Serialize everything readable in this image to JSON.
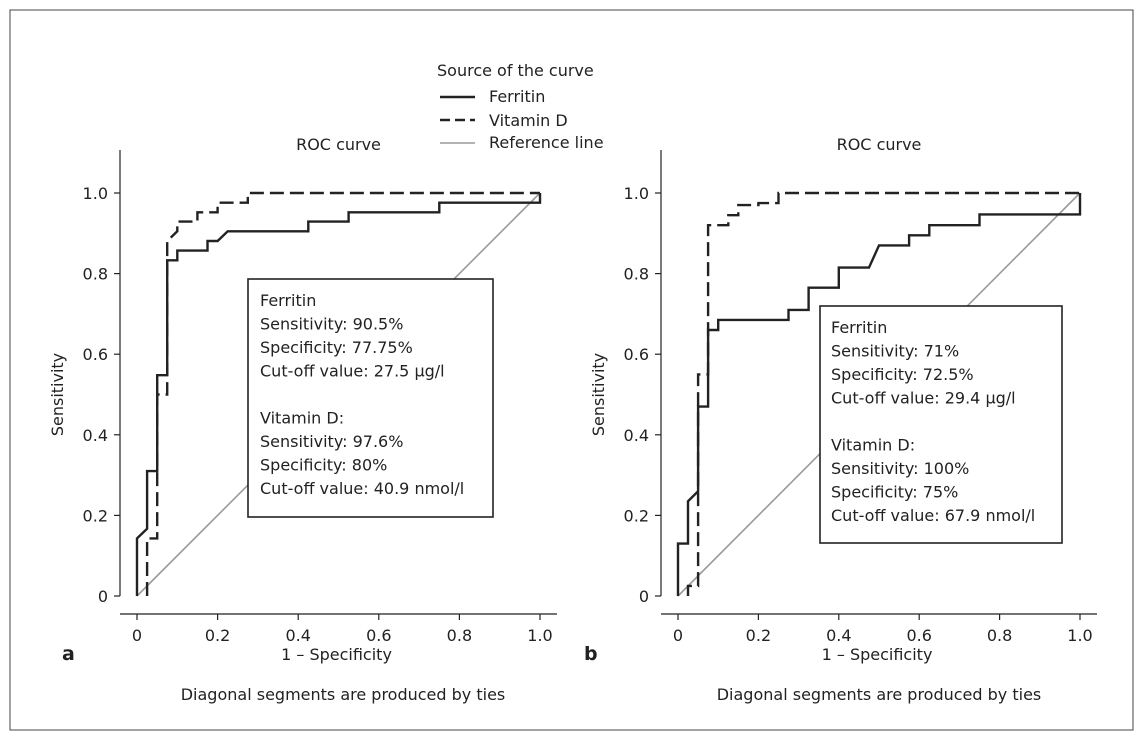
{
  "legend": {
    "title": "Source of the curve",
    "items": [
      {
        "label": "Ferritin",
        "style": "solid"
      },
      {
        "label": "Vitamin D",
        "style": "dashed"
      },
      {
        "label": "Reference line",
        "style": "gray"
      }
    ]
  },
  "footnote": "Diagonal segments are produced by ties",
  "chart_data": [
    {
      "type": "line",
      "panel_label": "a",
      "title": "ROC curve",
      "xlabel": "1 – Specificity",
      "ylabel": "Sensitivity",
      "xlim": [
        0,
        1.0
      ],
      "ylim": [
        0,
        1.0
      ],
      "xticks": [
        "0",
        "0.2",
        "0.4",
        "0.6",
        "0.8",
        "1.0"
      ],
      "yticks": [
        "0",
        "0.2",
        "0.4",
        "0.6",
        "0.8",
        "1.0"
      ],
      "series": [
        {
          "name": "Ferritin",
          "style": "solid",
          "x": [
            0,
            0,
            0.025,
            0.025,
            0.05,
            0.05,
            0.075,
            0.075,
            0.1,
            0.1,
            0.175,
            0.175,
            0.2,
            0.225,
            0.425,
            0.425,
            0.525,
            0.525,
            0.75,
            0.75,
            1.0,
            1.0
          ],
          "y": [
            0,
            0.143,
            0.167,
            0.31,
            0.31,
            0.548,
            0.548,
            0.833,
            0.833,
            0.857,
            0.857,
            0.881,
            0.881,
            0.905,
            0.905,
            0.929,
            0.929,
            0.952,
            0.952,
            0.976,
            0.976,
            1.0
          ]
        },
        {
          "name": "Vitamin D",
          "style": "dashed",
          "x": [
            0.025,
            0.025,
            0.05,
            0.05,
            0.075,
            0.075,
            0.1,
            0.1,
            0.15,
            0.15,
            0.2,
            0.2,
            0.275,
            0.275,
            1.0
          ],
          "y": [
            0,
            0.143,
            0.143,
            0.5,
            0.5,
            0.881,
            0.905,
            0.929,
            0.929,
            0.952,
            0.952,
            0.976,
            0.976,
            1.0,
            1.0
          ]
        },
        {
          "name": "Reference line",
          "style": "gray",
          "x": [
            0,
            1.0
          ],
          "y": [
            0,
            1.0
          ]
        }
      ],
      "annotation": [
        "Ferritin",
        "Sensitivity: 90.5%",
        "Specificity: 77.75%",
        "Cut-off value: 27.5 µg/l",
        "",
        "Vitamin D:",
        "Sensitivity: 97.6%",
        "Specificity: 80%",
        "Cut-off value: 40.9 nmol/l"
      ]
    },
    {
      "type": "line",
      "panel_label": "b",
      "title": "ROC curve",
      "xlabel": "1 – Specificity",
      "ylabel": "Sensitivity",
      "xlim": [
        0,
        1.0
      ],
      "ylim": [
        0,
        1.0
      ],
      "xticks": [
        "0",
        "0.2",
        "0.4",
        "0.6",
        "0.8",
        "1.0"
      ],
      "yticks": [
        "0",
        "0.2",
        "0.4",
        "0.6",
        "0.8",
        "1.0"
      ],
      "series": [
        {
          "name": "Ferritin",
          "style": "solid",
          "x": [
            0,
            0,
            0.025,
            0.025,
            0.05,
            0.05,
            0.075,
            0.075,
            0.1,
            0.1,
            0.275,
            0.275,
            0.325,
            0.325,
            0.4,
            0.4,
            0.475,
            0.5,
            0.575,
            0.575,
            0.625,
            0.625,
            0.75,
            0.75,
            1.0,
            1.0
          ],
          "y": [
            0,
            0.13,
            0.13,
            0.235,
            0.26,
            0.47,
            0.47,
            0.66,
            0.66,
            0.685,
            0.685,
            0.71,
            0.71,
            0.765,
            0.765,
            0.815,
            0.815,
            0.87,
            0.87,
            0.895,
            0.895,
            0.92,
            0.92,
            0.947,
            0.947,
            1.0
          ]
        },
        {
          "name": "Vitamin D",
          "style": "dashed",
          "x": [
            0.025,
            0.025,
            0.05,
            0.05,
            0.075,
            0.075,
            0.125,
            0.125,
            0.15,
            0.15,
            0.2,
            0.2,
            0.25,
            0.25,
            1.0
          ],
          "y": [
            0,
            0.025,
            0.025,
            0.55,
            0.55,
            0.92,
            0.92,
            0.945,
            0.945,
            0.97,
            0.97,
            0.975,
            0.975,
            1.0,
            1.0
          ]
        },
        {
          "name": "Reference line",
          "style": "gray",
          "x": [
            0,
            1.0
          ],
          "y": [
            0,
            1.0
          ]
        }
      ],
      "annotation": [
        "Ferritin",
        "Sensitivity: 71%",
        "Specificity: 72.5%",
        "Cut-off value: 29.4 µg/l",
        "",
        "Vitamin D:",
        "Sensitivity: 100%",
        "Specificity: 75%",
        "Cut-off value: 67.9 nmol/l"
      ]
    }
  ]
}
